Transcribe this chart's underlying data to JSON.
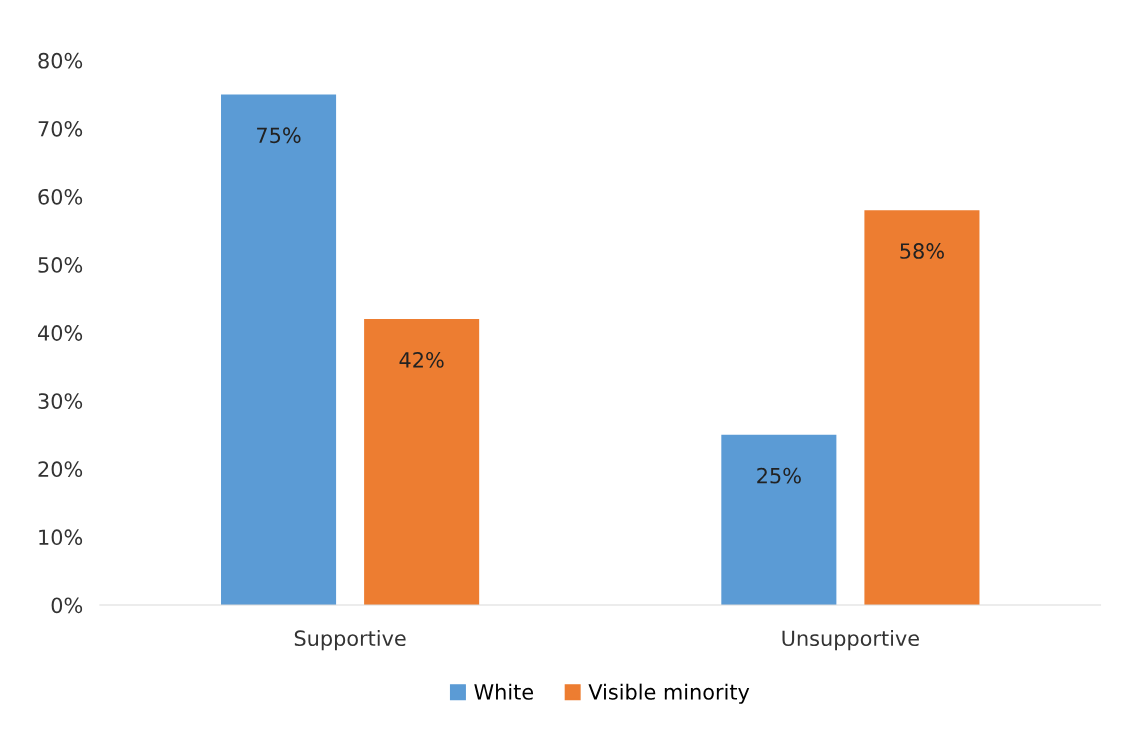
{
  "chart_data": {
    "type": "bar",
    "categories": [
      "Supportive",
      "Unsupportive"
    ],
    "series": [
      {
        "name": "White",
        "color": "#5b9bd5",
        "values": [
          75,
          25
        ],
        "value_labels": [
          "75%",
          "25%"
        ]
      },
      {
        "name": "Visible minority",
        "color": "#ed7d31",
        "values": [
          42,
          58
        ],
        "value_labels": [
          "42%",
          "58%"
        ]
      }
    ],
    "ylim": [
      0,
      80
    ],
    "yticks": [
      {
        "value": 0,
        "label": "0%"
      },
      {
        "value": 10,
        "label": "10%"
      },
      {
        "value": 20,
        "label": "20%"
      },
      {
        "value": 30,
        "label": "30%"
      },
      {
        "value": 40,
        "label": "40%"
      },
      {
        "value": 50,
        "label": "50%"
      },
      {
        "value": 60,
        "label": "60%"
      },
      {
        "value": 70,
        "label": "70%"
      },
      {
        "value": 80,
        "label": "80%"
      }
    ],
    "grid": false,
    "legend": "bottom"
  }
}
